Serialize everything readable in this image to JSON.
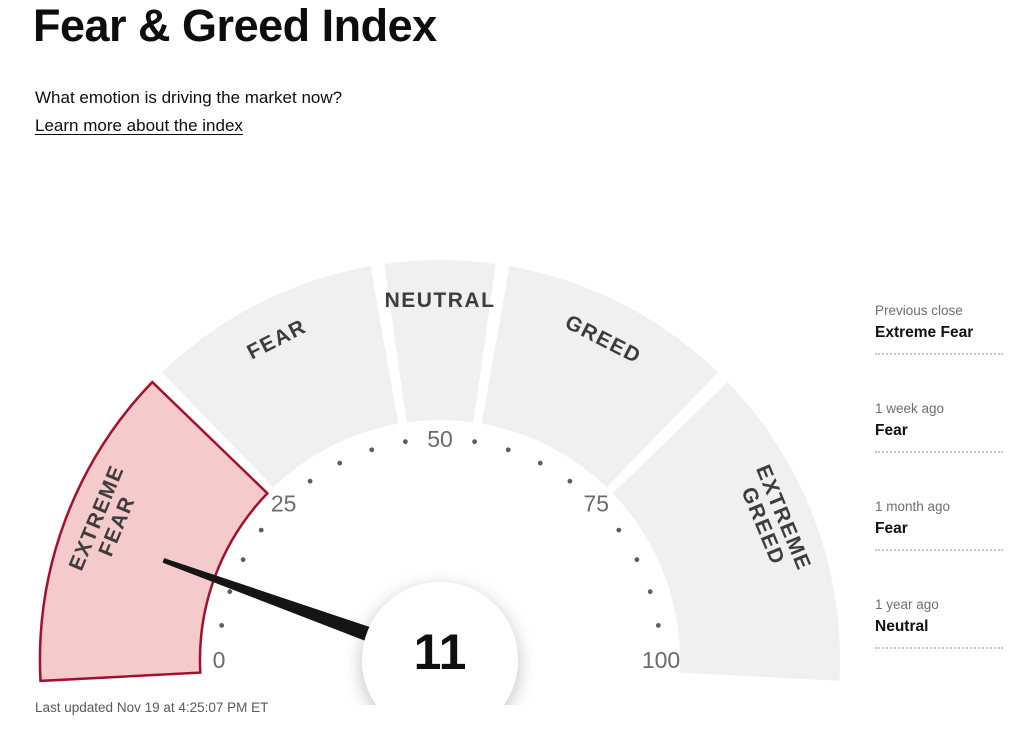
{
  "page": {
    "title": "Fear & Greed Index",
    "subtitle": "What emotion is driving the market now?",
    "learn_more": "Learn more about the index",
    "last_updated": "Last updated Nov 19 at 4:25:07 PM ET"
  },
  "chart_data": {
    "type": "gauge",
    "title": "Fear & Greed Index",
    "value": 11,
    "value_label": "11",
    "min": 0,
    "max": 100,
    "current_zone": "Extreme Fear",
    "segments": [
      {
        "label": "EXTREME FEAR",
        "lines": [
          "EXTREME",
          "FEAR"
        ],
        "from": 0,
        "to": 25,
        "highlighted": true
      },
      {
        "label": "FEAR",
        "lines": [
          "FEAR"
        ],
        "from": 25,
        "to": 45,
        "highlighted": false
      },
      {
        "label": "NEUTRAL",
        "lines": [
          "NEUTRAL"
        ],
        "from": 45,
        "to": 55,
        "highlighted": false
      },
      {
        "label": "GREED",
        "lines": [
          "GREED"
        ],
        "from": 55,
        "to": 75,
        "highlighted": false
      },
      {
        "label": "EXTREME GREED",
        "lines": [
          "EXTREME",
          "GREED"
        ],
        "from": 75,
        "to": 100,
        "highlighted": false
      }
    ],
    "ticks": [
      0,
      25,
      50,
      75,
      100
    ],
    "minor_tick_step": 5,
    "colors": {
      "segment_fill": "#f0f0f0",
      "highlight_fill": "#f5caca",
      "highlight_stroke": "#a50f2e",
      "needle": "#151515",
      "tick_text": "#6b6b6b",
      "minor_tick": "#5d5d5d",
      "segment_text": "#3d3d3d",
      "value_text": "#0f0f0f"
    }
  },
  "history": {
    "items": [
      {
        "label": "Previous close",
        "value": "Extreme Fear"
      },
      {
        "label": "1 week ago",
        "value": "Fear"
      },
      {
        "label": "1 month ago",
        "value": "Fear"
      },
      {
        "label": "1 year ago",
        "value": "Neutral"
      }
    ]
  }
}
